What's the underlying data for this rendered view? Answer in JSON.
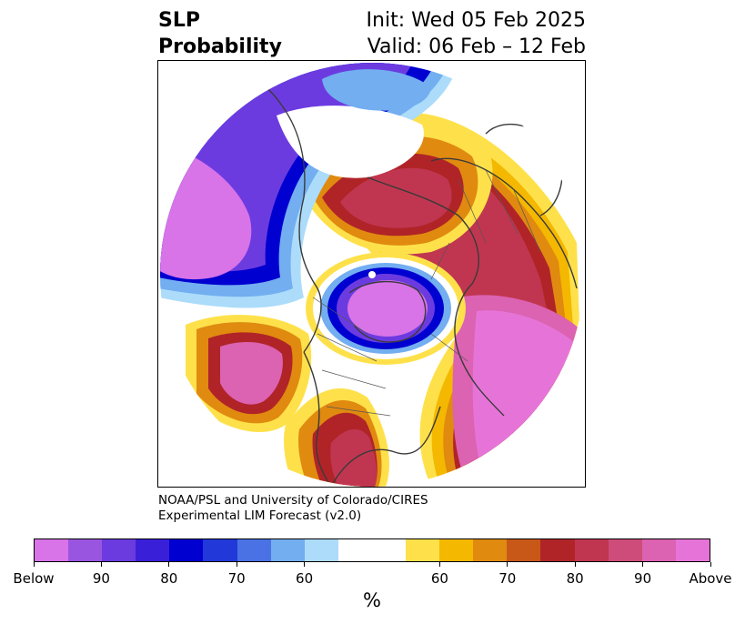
{
  "title": {
    "variable_line1": "SLP",
    "variable_line2": "Probability",
    "init": "Init: Wed 05 Feb 2025",
    "valid": "Valid: 06 Feb – 12 Feb"
  },
  "credit": {
    "line1": "NOAA/PSL and University of Colorado/CIRES",
    "line2": "Experimental LIM Forecast (v2.0)"
  },
  "colorbar": {
    "unit": "%",
    "tick_labels": [
      "Below",
      "90",
      "80",
      "70",
      "60",
      "60",
      "70",
      "80",
      "90",
      "Above"
    ],
    "below_colors": [
      "#d873e8",
      "#9a55e0",
      "#6c3be0",
      "#3a1fd8",
      "#0000d0",
      "#2238d8",
      "#4a72e4",
      "#72aef0",
      "#acdcfa"
    ],
    "neutral_color": "#ffffff",
    "above_colors": [
      "#fee14a",
      "#f4b800",
      "#e08a10",
      "#c85818",
      "#b02428",
      "#c03650",
      "#ce4c7a",
      "#dc62b2",
      "#e674d8"
    ]
  },
  "map": {
    "projection": "north-polar-stereographic",
    "map_colors": {
      "below_strong": "#d873e8",
      "below_mid": "#6c3be0",
      "below_core": "#0000d0",
      "below_light": "#72aef0",
      "below_pale": "#acdcfa",
      "above_pale": "#fee14a",
      "above_light": "#f4b800",
      "above_mid": "#e08a10",
      "above_red": "#b02428",
      "above_rose": "#c03650",
      "above_pink": "#dc62b2",
      "above_strong": "#e674d8",
      "coast": "#3a3a3a",
      "border": "#555555"
    }
  }
}
